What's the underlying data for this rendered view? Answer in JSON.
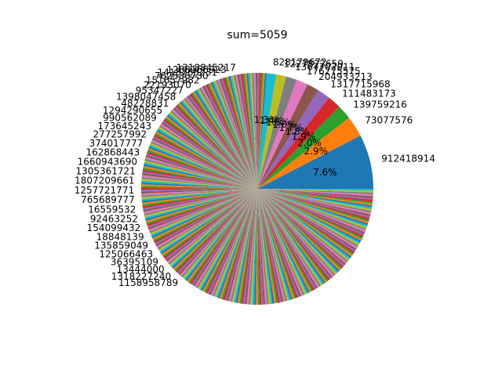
{
  "chart_data": {
    "type": "pie",
    "title": "sum=5059",
    "colors": [
      "#1f77b4",
      "#ff7f0e",
      "#2ca02c",
      "#d62728",
      "#9467bd",
      "#8c564b",
      "#e377c2",
      "#7f7f7f",
      "#bcbd22",
      "#17becf"
    ],
    "labeled_slices": [
      {
        "label": "912418914",
        "value": 384,
        "percent": "7.6%"
      },
      {
        "label": "73077576",
        "value": 147,
        "percent": "2.9%"
      },
      {
        "label": "139759216",
        "value": 101,
        "percent": "2.0%"
      },
      {
        "label": "111483173",
        "value": 96,
        "percent": "1.9%"
      },
      {
        "label": "1317715968",
        "value": 91,
        "percent": "1.8%"
      },
      {
        "label": "204933213",
        "value": 86,
        "percent": "1.7%"
      },
      {
        "label": "176275575",
        "value": 81,
        "percent": "1.6%"
      },
      {
        "label": "1367702011",
        "value": 76,
        "percent": "1.5%"
      },
      {
        "label": "1227822659",
        "value": 71,
        "percent": "1.4%"
      },
      {
        "label": "828179672",
        "value": 66,
        "percent": "1.3%"
      }
    ],
    "other_slices_count": 300,
    "other_slices_total": 3860,
    "minor_label_samples": [
      "1318845217",
      "1288166923",
      "1418765231",
      "762536730",
      "151657982",
      "22193070",
      "95347227",
      "1398047458",
      "48228831",
      "1294290655",
      "990562089",
      "173645243",
      "277257992",
      "374017777",
      "162868443",
      "1660943690",
      "1305361721",
      "1807209661",
      "1257721771",
      "765689777",
      "16559532",
      "92463252",
      "154099432",
      "18848139",
      "135859049",
      "125066463",
      "36395109",
      "13444000",
      "1318227240",
      "1158958789"
    ]
  }
}
